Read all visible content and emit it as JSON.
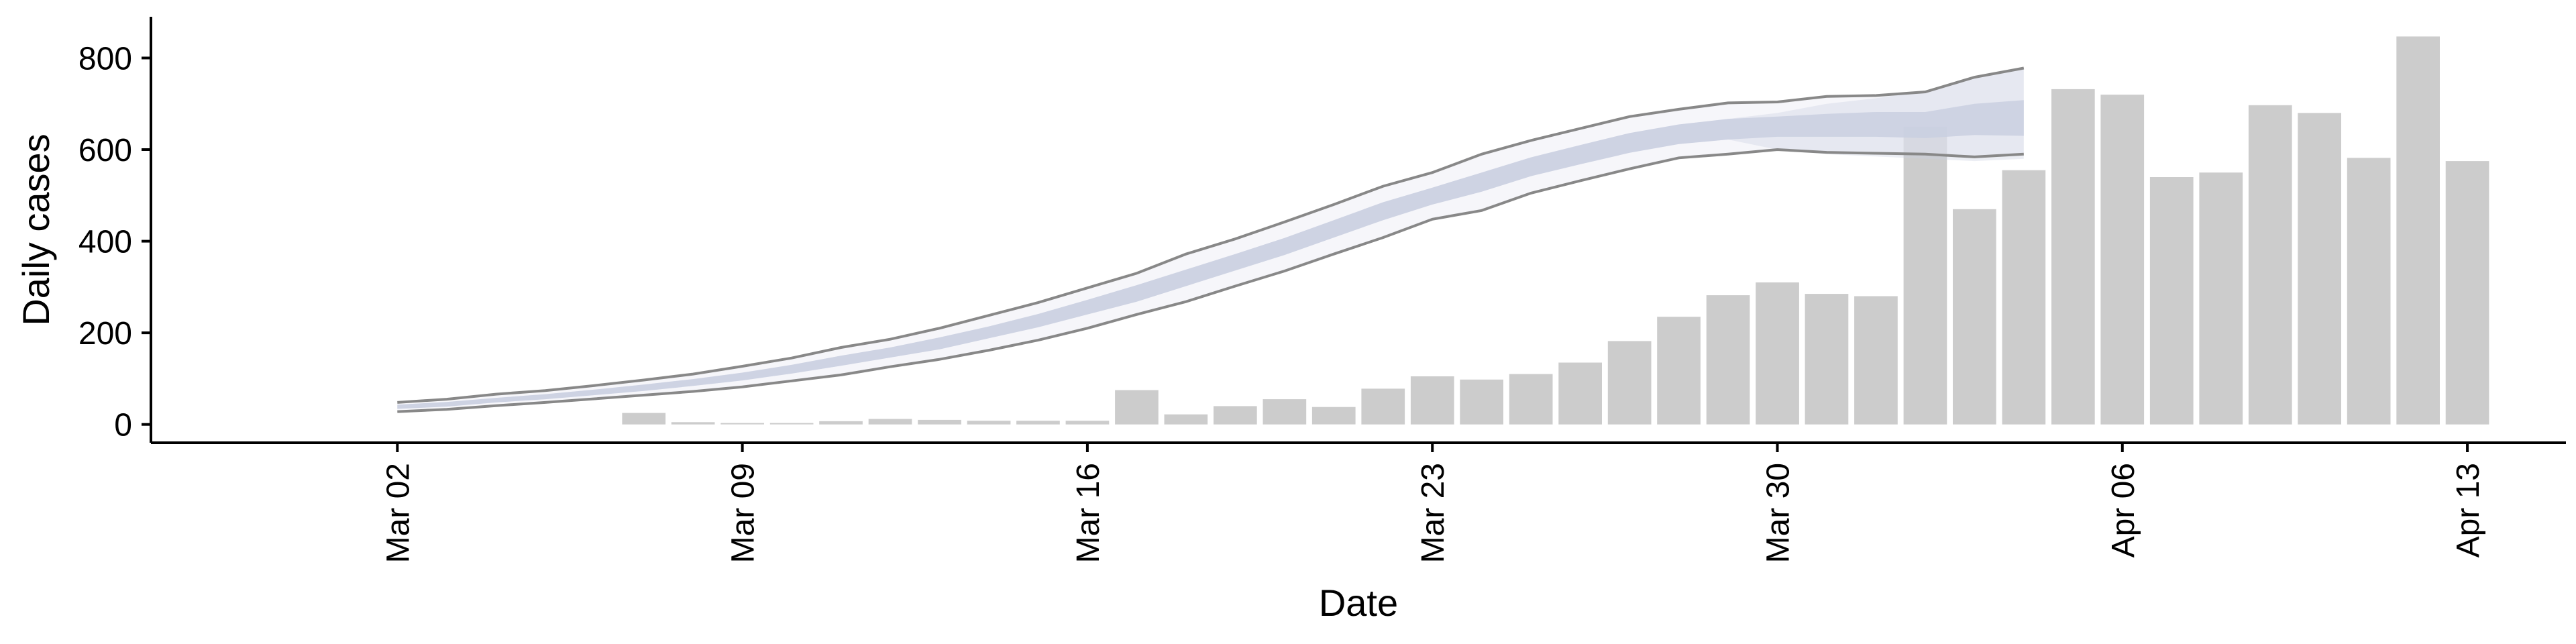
{
  "chart_data": {
    "type": "bar",
    "xlabel": "Date",
    "ylabel": "Daily cases",
    "x_ticks": [
      "Mar 02",
      "Mar 09",
      "Mar 16",
      "Mar 23",
      "Mar 30",
      "Apr 06",
      "Apr 13"
    ],
    "y_ticks": [
      0,
      200,
      400,
      600,
      800
    ],
    "ylim": [
      -40,
      890
    ],
    "xlim": [
      "Feb 26",
      "Apr 15"
    ],
    "grid": false,
    "bars": {
      "name": "",
      "color": "#cccccc",
      "x": [
        "Mar 07",
        "Mar 08",
        "Mar 09",
        "Mar 10",
        "Mar 11",
        "Mar 12",
        "Mar 13",
        "Mar 14",
        "Mar 15",
        "Mar 16",
        "Mar 17",
        "Mar 18",
        "Mar 19",
        "Mar 20",
        "Mar 21",
        "Mar 22",
        "Mar 23",
        "Mar 24",
        "Mar 25",
        "Mar 26",
        "Mar 27",
        "Mar 28",
        "Mar 29",
        "Mar 30",
        "Mar 31",
        "Apr 01",
        "Apr 02",
        "Apr 03",
        "Apr 04",
        "Apr 05",
        "Apr 06",
        "Apr 07",
        "Apr 08",
        "Apr 09",
        "Apr 10",
        "Apr 11",
        "Apr 12",
        "Apr 13"
      ],
      "values": [
        25,
        5,
        3,
        3,
        7,
        12,
        10,
        8,
        8,
        8,
        75,
        22,
        40,
        55,
        38,
        78,
        105,
        98,
        110,
        135,
        182,
        235,
        282,
        310,
        285,
        280,
        650,
        470,
        555,
        732,
        720,
        540,
        550,
        697,
        680,
        582,
        847,
        575
      ]
    },
    "model": {
      "line_color": "#888888",
      "band_color": "#c9cfe0",
      "outer_band_color": "#eeeff5",
      "x": [
        "Mar 02",
        "Mar 03",
        "Mar 04",
        "Mar 05",
        "Mar 06",
        "Mar 07",
        "Mar 08",
        "Mar 09",
        "Mar 10",
        "Mar 11",
        "Mar 12",
        "Mar 13",
        "Mar 14",
        "Mar 15",
        "Mar 16",
        "Mar 17",
        "Mar 18",
        "Mar 19",
        "Mar 20",
        "Mar 21",
        "Mar 22",
        "Mar 23",
        "Mar 24",
        "Mar 25",
        "Mar 26",
        "Mar 27",
        "Mar 28",
        "Mar 29",
        "Mar 30",
        "Mar 31",
        "Apr 01",
        "Apr 02",
        "Apr 03",
        "Apr 04"
      ],
      "upper": [
        48,
        55,
        66,
        74,
        85,
        97,
        110,
        127,
        145,
        168,
        186,
        210,
        238,
        266,
        298,
        330,
        372,
        405,
        442,
        480,
        520,
        550,
        590,
        620,
        646,
        672,
        688,
        702,
        704,
        716,
        718,
        726,
        758,
        778
      ],
      "lower": [
        28,
        33,
        41,
        48,
        56,
        64,
        72,
        82,
        95,
        108,
        126,
        142,
        162,
        184,
        210,
        240,
        268,
        302,
        335,
        372,
        408,
        448,
        467,
        505,
        532,
        558,
        582,
        590,
        600,
        594,
        592,
        590,
        584,
        590
      ],
      "median": [
        38,
        44,
        53,
        61,
        70,
        80,
        91,
        104,
        120,
        138,
        156,
        176,
        200,
        225,
        254,
        285,
        320,
        353,
        388,
        426,
        464,
        498,
        528,
        563,
        589,
        615,
        635,
        646,
        652,
        655,
        660,
        658,
        671,
        684
      ],
      "band_upper": [
        43,
        49,
        58,
        66,
        76,
        87,
        99,
        113,
        130,
        150,
        168,
        190,
        214,
        241,
        272,
        304,
        338,
        372,
        407,
        446,
        485,
        517,
        550,
        583,
        610,
        636,
        655,
        667,
        672,
        678,
        682,
        682,
        700,
        708
      ],
      "band_lower": [
        34,
        39,
        48,
        55,
        64,
        73,
        84,
        96,
        111,
        128,
        146,
        164,
        188,
        212,
        240,
        268,
        302,
        336,
        370,
        408,
        446,
        480,
        508,
        542,
        568,
        593,
        612,
        622,
        628,
        628,
        628,
        625,
        632,
        630
      ],
      "faint_upper": [
        43,
        49,
        58,
        66,
        76,
        87,
        99,
        113,
        130,
        150,
        168,
        190,
        214,
        241,
        272,
        304,
        338,
        372,
        407,
        446,
        485,
        517,
        550,
        583,
        610,
        636,
        655,
        667,
        680,
        700,
        712,
        728,
        760,
        780
      ],
      "faint_lower": [
        34,
        39,
        48,
        55,
        64,
        73,
        84,
        96,
        111,
        128,
        146,
        164,
        188,
        212,
        240,
        268,
        302,
        336,
        370,
        408,
        446,
        480,
        508,
        542,
        568,
        593,
        612,
        622,
        600,
        590,
        585,
        580,
        575,
        580
      ]
    }
  }
}
